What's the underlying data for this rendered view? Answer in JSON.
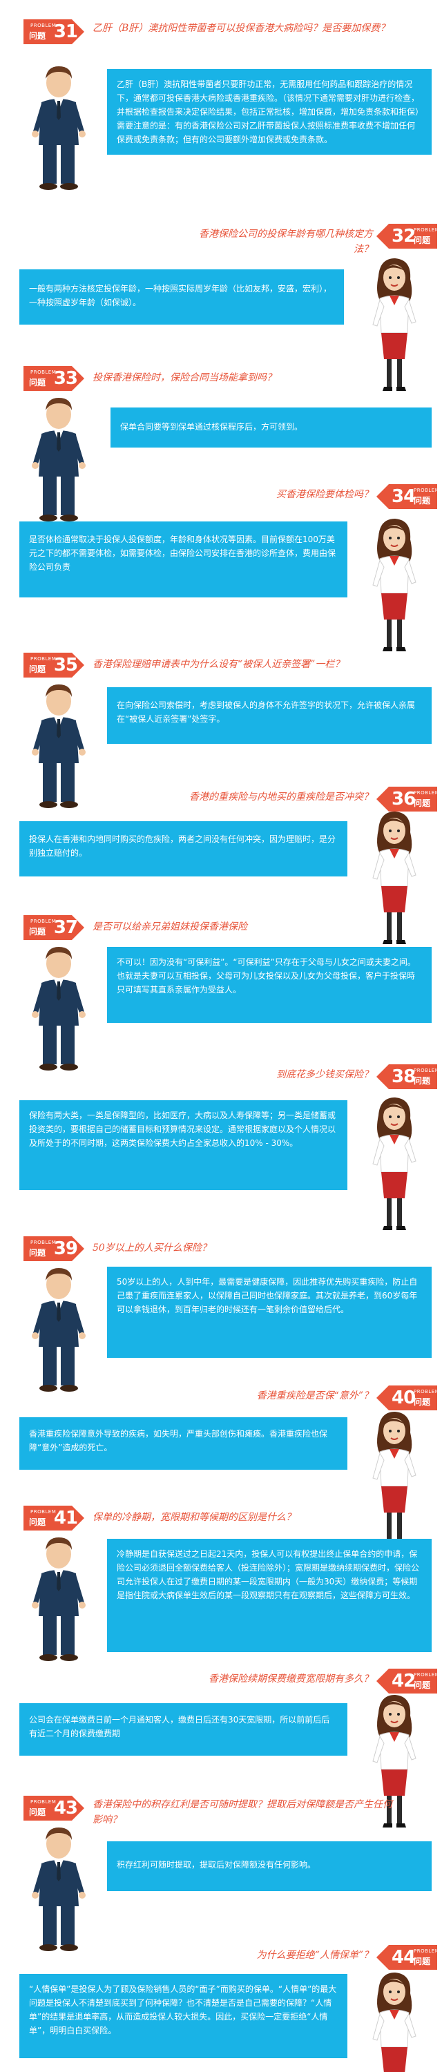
{
  "badge": {
    "small": "PROBLEM",
    "label": "问题"
  },
  "items": [
    {
      "num": "31",
      "question": "乙肝（B肝）澳抗阳性带菌者可以投保香港大病险吗？是否要加保费？",
      "answer": [
        "乙肝（B肝）澳抗阳性带菌者只要肝功正常，无需服用任何药品和跟踪治疗的情况下，通常都可投保香港大病险或香港重疾险。（该情况下通常需要对肝功进行检查，并根据检查报告来决定保险结果，包括正常批核，增加保费，增加免责条款和拒保）",
        "需要注意的是：有的香港保险公司对乙肝带菌投保人按照标准费率收费不增加任何保费或免责条款；但有的公司要额外增加保费或免责条款。"
      ]
    },
    {
      "num": "32",
      "question": "香港保险公司的投保年龄有哪几种核定方法？",
      "answer": [
        "一般有两种方法核定投保年龄，一种按照实际周岁年龄（比如友邦，安盛，宏利），一种按照虚岁年龄（如保诚）。"
      ]
    },
    {
      "num": "33",
      "question": "投保香港保险时，保险合同当场能拿到吗？",
      "answer": [
        "保单合同要等到保单通过核保程序后，方可领到。"
      ]
    },
    {
      "num": "34",
      "question": "买香港保险要体检吗？",
      "answer": [
        "是否体检通常取决于投保人投保额度，年龄和身体状况等因素。目前保额在100万美元之下的都不需要体检，如需要体检，由保险公司安排在香港的诊所查体，费用由保险公司负责"
      ]
    },
    {
      "num": "35",
      "question": "香港保险理赔申请表中为什么设有“被保人近亲签署”一栏？",
      "answer": [
        "在向保险公司索偿时，考虑到被保人的身体不允许签字的状况下，允许被保人亲属在“被保人近亲签署”处签字。"
      ]
    },
    {
      "num": "36",
      "question": "香港的重疾险与内地买的重疾险是否冲突？",
      "answer": [
        "投保人在香港和内地同时购买的危疾险，两者之间没有任何冲突，因为理赔时，是分别独立赔付的。"
      ]
    },
    {
      "num": "37",
      "question": "是否可以给亲兄弟姐妹投保香港保险",
      "answer": [
        "不可以！因为没有“可保利益”。“可保利益”只存在于父母与儿女之间或夫妻之间。也就是夫妻可以互相投保，父母可为儿女投保以及儿女为父母投保，客户于投保時只可填写其直系亲属作为受益人。"
      ]
    },
    {
      "num": "38",
      "question": "到底花多少钱买保险？",
      "answer": [
        "保险有两大类，一类是保障型的，比如医疗，大病以及人寿保障等；另一类是储蓄或投资类的，要根据自己的储蓄目标和预算情况来设定。通常根据家庭以及个人情况以及所处于的不同时期，这两类保险保费大约占全家总收入的10% - 30%。"
      ]
    },
    {
      "num": "39",
      "question": "50岁以上的人买什么保险？",
      "answer": [
        "50岁以上的人，人到中年，最需要是健康保障，因此推荐优先购买重疾险，防止自己患了重疾而连累家人，以保障自己同时也保障家庭。其次就是养老，到60岁每年可以拿钱退休，到百年归老的时候还有一笔剩余价值留给后代。"
      ]
    },
    {
      "num": "40",
      "question": "香港重疾险是否保“意外”？",
      "answer": [
        "香港重疾险保障意外导致的疾病，如失明，严重头部创伤和瘫痪。香港重疾险也保障“意外”造成的死亡。"
      ]
    },
    {
      "num": "41",
      "question": "保单的冷静期，宽限期和等候期的区别是什么？",
      "answer": [
        "冷静期是自获保送过之日起21天内，投保人可以有权提出终止保单合约的申请，保险公司必须退回全额保费给客人（投连险除外）；宽限期是缴纳续期保费时，保险公司允许投保人在过了缴费日期的某一段宽限期内（一般为30天）缴纳保费；等候期是指住院或大病保单生效后的某一段观察期只有在观察期后，这些保障方可生效。"
      ]
    },
    {
      "num": "42",
      "question": "香港保险续期保费缴费宽限期有多久？",
      "answer": [
        "公司会在保单缴费日前一个月通知客人，缴费日后还有30天宽限期，所以前前后后有近二个月的保费缴费期"
      ]
    },
    {
      "num": "43",
      "question": "香港保险中的积存红利是否可随时提取？提取后对保障额是否产生任何影响？",
      "answer": [
        "积存红利可随时提取，提取后对保障额没有任何影响。"
      ]
    },
    {
      "num": "44",
      "question": "为什么要拒绝“人情保单”？",
      "answer": [
        "“人情保单”是投保人为了顾及保险销售人员的“面子”而购买的保单。“人情单”的最大问题是投保人不清楚到底买到了何种保障？也不清楚是否是自己需要的保障？“人情单”的结果是退单率高，从而造成投保人较大损失。因此，买保险一定要拒绝“人情单”，明明白白买保险。"
      ]
    }
  ],
  "colors": {
    "accent": "#e8543a",
    "answer_bg": "#19b3e6",
    "suit": "#1e3a5a"
  }
}
